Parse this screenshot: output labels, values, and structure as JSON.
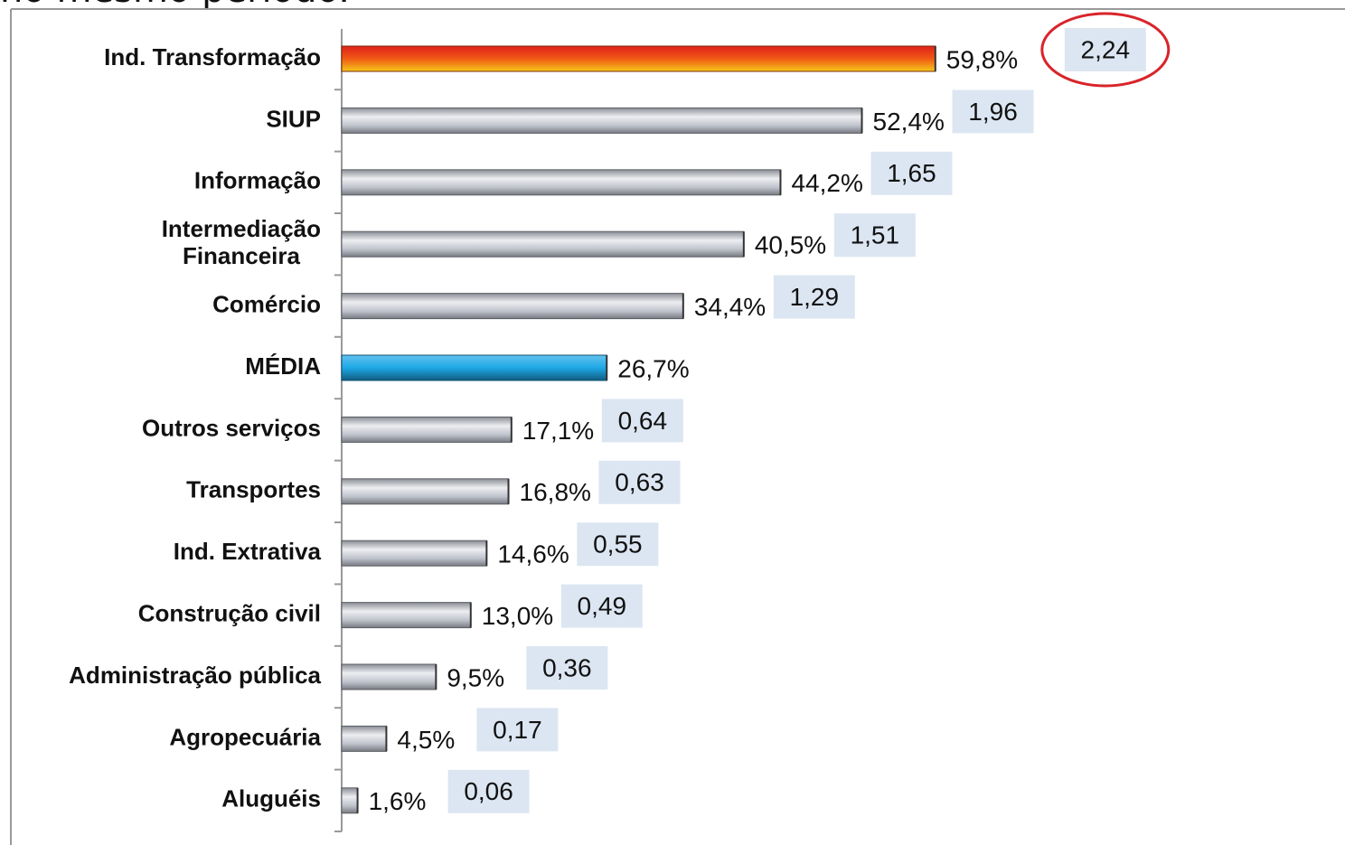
{
  "chart_data": {
    "type": "bar",
    "orientation": "horizontal",
    "title": "no mesmo período.",
    "categories": [
      "Ind. Transformação",
      "SIUP",
      "Informação",
      "Intermediação\nFinanceira",
      "Comércio",
      "MÉDIA",
      "Outros serviços",
      "Transportes",
      "Ind. Extrativa",
      "Construção civil",
      "Administração  pública",
      "Agropecuária",
      "Aluguéis"
    ],
    "values": [
      59.8,
      52.4,
      44.2,
      40.5,
      34.4,
      26.7,
      17.1,
      16.8,
      14.6,
      13.0,
      9.5,
      4.5,
      1.6
    ],
    "value_labels": [
      "59,8%",
      "52,4%",
      "44,2%",
      "40,5%",
      "34,4%",
      "26,7%",
      "17,1%",
      "16,8%",
      "14,6%",
      "13,0%",
      "9,5%",
      "4,5%",
      "1,6%"
    ],
    "colors": [
      "#f05a14",
      "#b8bcc6",
      "#b8bcc6",
      "#b8bcc6",
      "#b8bcc6",
      "#1ea8e6",
      "#b8bcc6",
      "#b8bcc6",
      "#b8bcc6",
      "#b8bcc6",
      "#b8bcc6",
      "#b8bcc6",
      "#b8bcc6"
    ],
    "ratios": [
      2.24,
      1.96,
      1.65,
      1.51,
      1.29,
      null,
      0.64,
      0.63,
      0.55,
      0.49,
      0.36,
      0.17,
      0.06
    ],
    "ratio_labels": [
      "2,24",
      "1,96",
      "1,65",
      "1,51",
      "1,29",
      null,
      "0,64",
      "0,63",
      "0,55",
      "0,49",
      "0,36",
      "0,17",
      "0,06"
    ],
    "ratio_box_color": "#dce6f2",
    "circled": 0,
    "circle_color": "#d9242a",
    "xlim": [
      0,
      60
    ]
  }
}
